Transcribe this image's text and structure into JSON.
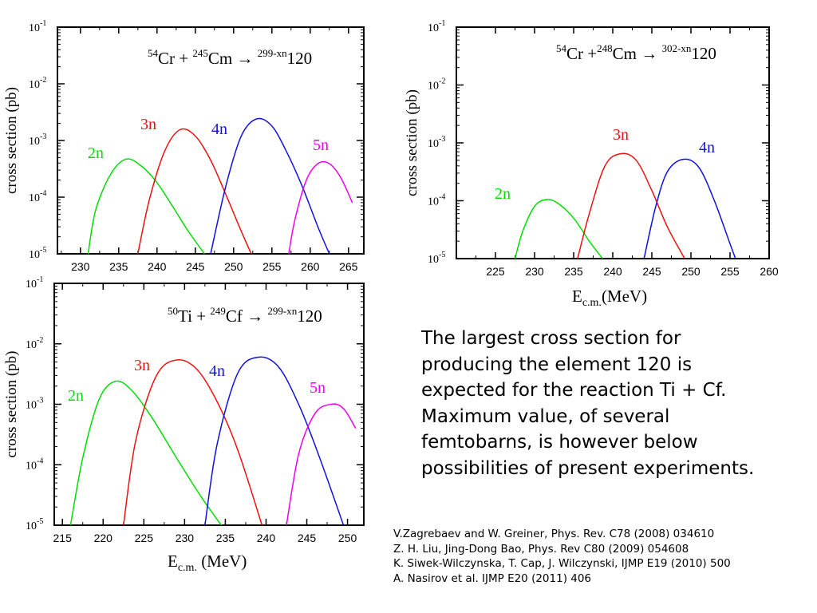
{
  "chart_data": [
    {
      "type": "line",
      "title_parts": {
        "a_mass": "54",
        "a": "Cr + ",
        "b_mass": "245",
        "b": "Cm → ",
        "c_mass": "299-xn",
        "c": "120"
      },
      "ylabel": "cross section (pb)",
      "xlabel": "",
      "log_y": true,
      "xlim": [
        227,
        267
      ],
      "ylim": [
        1e-05,
        0.1
      ],
      "x_ticks": [
        "230",
        "235",
        "240",
        "245",
        "250",
        "255",
        "260",
        "265"
      ],
      "y_ticks": [
        {
          "base": "10",
          "exp": "-5"
        },
        {
          "base": "10",
          "exp": "-4"
        },
        {
          "base": "10",
          "exp": "-3"
        },
        {
          "base": "10",
          "exp": "-2"
        },
        {
          "base": "10",
          "exp": "-1"
        }
      ],
      "series": [
        {
          "name": "2n",
          "color": "#00dd00",
          "x": [
            231,
            232,
            234,
            236,
            238,
            240,
            242,
            244,
            246.2
          ],
          "y": [
            1e-05,
            6e-05,
            0.00026,
            0.00047,
            0.00035,
            0.00018,
            7e-05,
            2.6e-05,
            1e-05
          ]
        },
        {
          "name": "3n",
          "color": "#ee1111",
          "x": [
            237.5,
            239,
            241,
            243,
            245,
            247,
            249,
            251,
            252.3
          ],
          "y": [
            1e-05,
            9e-05,
            0.00065,
            0.00155,
            0.0012,
            0.00045,
            0.00011,
            2.5e-05,
            1e-05
          ]
        },
        {
          "name": "4n",
          "color": "#1111dd",
          "x": [
            247,
            249,
            251,
            253,
            255,
            257,
            259,
            261,
            262.5
          ],
          "y": [
            1e-05,
            0.00016,
            0.0012,
            0.0024,
            0.0018,
            0.0006,
            0.00015,
            3e-05,
            1e-05
          ]
        },
        {
          "name": "5n",
          "color": "#ee00ee",
          "x": [
            257.2,
            258,
            259.5,
            261,
            262.5,
            264,
            265.5
          ],
          "y": [
            1e-05,
            4e-05,
            0.0002,
            0.00039,
            0.00039,
            0.00022,
            8e-05
          ]
        }
      ]
    },
    {
      "type": "line",
      "title_parts": {
        "a_mass": "54",
        "a": "Cr +",
        "b_mass": "248",
        "b": "Cm → ",
        "c_mass": "302-xn",
        "c": "120"
      },
      "ylabel": "cross section (pb)",
      "xlabel_main": "E",
      "xlabel_sub": "c.m.",
      "xlabel_unit": "(MeV)",
      "log_y": true,
      "xlim": [
        220,
        260
      ],
      "ylim": [
        1e-05,
        0.1
      ],
      "x_ticks": [
        "225",
        "230",
        "235",
        "240",
        "245",
        "250",
        "255",
        "260"
      ],
      "y_ticks": [
        {
          "base": "10",
          "exp": "-5"
        },
        {
          "base": "10",
          "exp": "-4"
        },
        {
          "base": "10",
          "exp": "-3"
        },
        {
          "base": "10",
          "exp": "-2"
        },
        {
          "base": "10",
          "exp": "-1"
        }
      ],
      "series": [
        {
          "name": "2n",
          "color": "#00dd00",
          "x": [
            227.5,
            228.5,
            230,
            231.5,
            233,
            235,
            237,
            238.7
          ],
          "y": [
            1e-05,
            3e-05,
            8e-05,
            0.000105,
            9e-05,
            5e-05,
            2e-05,
            1e-05
          ]
        },
        {
          "name": "3n",
          "color": "#ee1111",
          "x": [
            235.5,
            237,
            239,
            241,
            243,
            245,
            247,
            249.2
          ],
          "y": [
            1e-05,
            6e-05,
            0.0004,
            0.00065,
            0.0005,
            0.00015,
            3.5e-05,
            1e-05
          ]
        },
        {
          "name": "4n",
          "color": "#1111dd",
          "x": [
            244,
            245.5,
            247,
            249,
            251,
            253,
            255,
            255.7
          ],
          "y": [
            1e-05,
            8e-05,
            0.00032,
            0.00052,
            0.00038,
            0.0001,
            1.8e-05,
            1e-05
          ]
        }
      ]
    },
    {
      "type": "line",
      "title_parts": {
        "a_mass": "50",
        "a": "Ti + ",
        "b_mass": "249",
        "b": "Cf → ",
        "c_mass": "299-xn",
        "c": "120"
      },
      "ylabel": "cross section (pb)",
      "xlabel_main": "E",
      "xlabel_sub": "c.m.",
      "xlabel_unit": " (MeV)",
      "log_y": true,
      "xlim": [
        214,
        252
      ],
      "ylim": [
        1e-05,
        0.1
      ],
      "x_ticks": [
        "215",
        "220",
        "225",
        "230",
        "235",
        "240",
        "245",
        "250"
      ],
      "y_ticks": [
        {
          "base": "10",
          "exp": "-5"
        },
        {
          "base": "10",
          "exp": "-4"
        },
        {
          "base": "10",
          "exp": "-3"
        },
        {
          "base": "10",
          "exp": "-2"
        },
        {
          "base": "10",
          "exp": "-1"
        }
      ],
      "series": [
        {
          "name": "2n",
          "color": "#00dd00",
          "x": [
            216,
            217.5,
            219.5,
            221.5,
            223.5,
            226,
            229,
            232,
            234.5
          ],
          "y": [
            1e-05,
            0.00013,
            0.0012,
            0.0024,
            0.0017,
            0.0006,
            0.00013,
            3e-05,
            1e-05
          ]
        },
        {
          "name": "3n",
          "color": "#ee1111",
          "x": [
            222.5,
            224,
            226.5,
            229,
            231.5,
            234,
            236.5,
            239.5
          ],
          "y": [
            1e-05,
            0.00025,
            0.0029,
            0.0054,
            0.0038,
            0.0011,
            0.00018,
            1e-05
          ]
        },
        {
          "name": "4n",
          "color": "#1111dd",
          "x": [
            232.5,
            234,
            236.5,
            239,
            241.5,
            244,
            246.5,
            249.5
          ],
          "y": [
            1e-05,
            0.00022,
            0.0032,
            0.006,
            0.0042,
            0.001,
            0.00014,
            1e-05
          ]
        },
        {
          "name": "5n",
          "color": "#ee00ee",
          "x": [
            242.5,
            244,
            246,
            248,
            249.5,
            251
          ],
          "y": [
            1e-05,
            0.00015,
            0.0007,
            0.001,
            0.00085,
            0.0004
          ]
        }
      ]
    }
  ],
  "note": {
    "lines": [
      "The largest cross section for",
      "producing the element 120 is",
      "expected for the reaction Ti + Cf.",
      "Maximum value, of several",
      "femtobarns,  is however below",
      "possibilities of present experiments."
    ]
  },
  "references": [
    "V.Zagrebaev and W. Greiner, Phys. Rev. C78 (2008) 034610",
    "Z. H. Liu, Jing-Dong Bao, Phys. Rev C80 (2009) 054608",
    "K. Siwek-Wilczynska, T. Cap, J. Wilczynski, IJMP E19 (2010) 500",
    "A. Nasirov et al. IJMP E20 (2011) 406"
  ]
}
